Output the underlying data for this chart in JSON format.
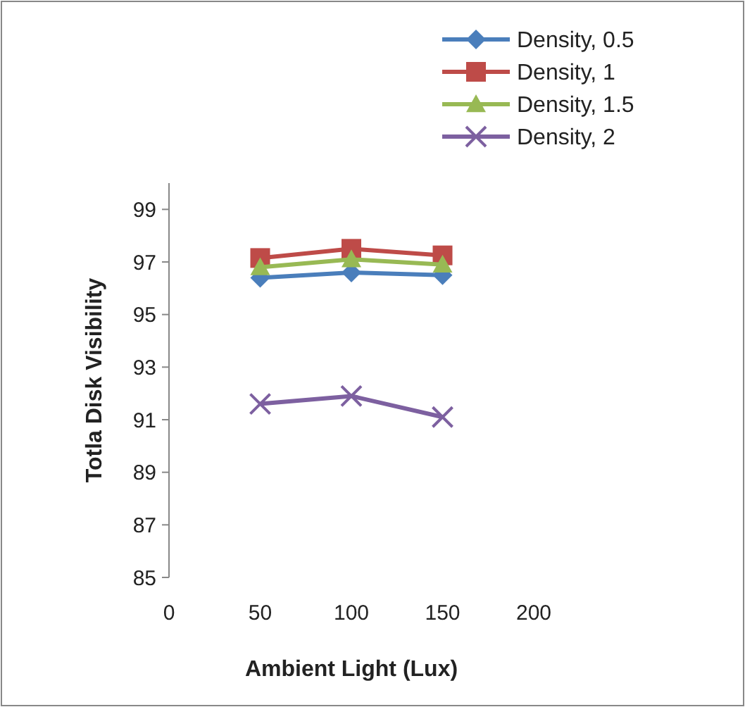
{
  "chart_data": {
    "type": "line",
    "xlabel": "Ambient Light (Lux)",
    "ylabel": "Totla Disk Visibility",
    "x": [
      50,
      100,
      150
    ],
    "series": [
      {
        "name": "Density, 0.5",
        "color": "#4a7ebb",
        "values": [
          96.4,
          96.6,
          96.5
        ],
        "marker": "diamond"
      },
      {
        "name": "Density, 1",
        "color": "#be4b48",
        "values": [
          97.15,
          97.5,
          97.25
        ],
        "marker": "square"
      },
      {
        "name": "Density, 1.5",
        "color": "#98b954",
        "values": [
          96.8,
          97.1,
          96.9
        ],
        "marker": "triangle"
      },
      {
        "name": "Density, 2",
        "color": "#7d60a0",
        "values": [
          91.6,
          91.9,
          91.1
        ],
        "marker": "cross"
      }
    ],
    "xlim": [
      0,
      200
    ],
    "xticks": [
      0,
      50,
      100,
      150,
      200
    ],
    "ylim": [
      85,
      100
    ],
    "yticks": [
      85,
      87,
      89,
      91,
      93,
      95,
      97,
      99
    ],
    "grid": false,
    "legend": "top right",
    "line_style": "solid"
  }
}
